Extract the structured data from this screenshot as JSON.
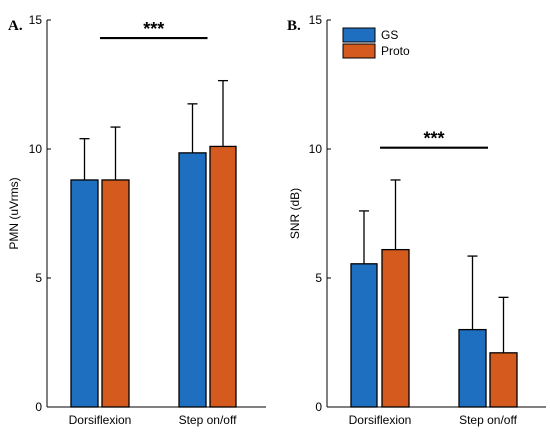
{
  "chart_data": [
    {
      "type": "bar",
      "panel_label": "A.",
      "ylabel": "PMN (uVrms)",
      "ylim": [
        0,
        15
      ],
      "yticks": [
        0,
        5,
        10,
        15
      ],
      "categories": [
        "Dorsiflexion",
        "Step on/off"
      ],
      "series": [
        {
          "name": "GS",
          "values": [
            8.8,
            9.85
          ],
          "errors": [
            1.6,
            1.9
          ],
          "color": "#1f6fc1"
        },
        {
          "name": "Proto",
          "values": [
            8.8,
            10.1
          ],
          "errors": [
            2.05,
            2.55
          ],
          "color": "#d45a1e"
        }
      ],
      "significance": {
        "label": "***",
        "y": 14.3
      }
    },
    {
      "type": "bar",
      "panel_label": "B.",
      "ylabel": "SNR (dB)",
      "ylim": [
        0,
        15
      ],
      "yticks": [
        0,
        5,
        10,
        15
      ],
      "categories": [
        "Dorsiflexion",
        "Step on/off"
      ],
      "series": [
        {
          "name": "GS",
          "values": [
            5.55,
            3.0
          ],
          "errors": [
            2.05,
            2.85
          ],
          "color": "#1f6fc1"
        },
        {
          "name": "Proto",
          "values": [
            6.1,
            2.1
          ],
          "errors": [
            2.7,
            2.15
          ],
          "color": "#d45a1e"
        }
      ],
      "significance": {
        "label": "***",
        "y": 10.05
      },
      "legend": {
        "position": "top-left"
      }
    }
  ]
}
